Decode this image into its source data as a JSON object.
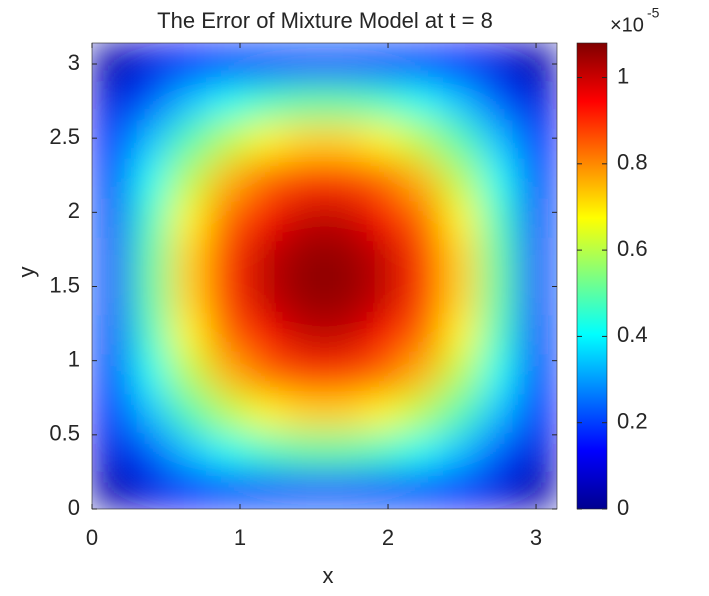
{
  "chart_data": {
    "type": "heatmap",
    "title": "The Error of Mixture Model at t = 8",
    "xlabel": "x",
    "ylabel": "y",
    "xlim": [
      0,
      3.1416
    ],
    "xticks": [
      0,
      1,
      2,
      3
    ],
    "ylim": [
      0,
      3.1416
    ],
    "yticks": [
      0,
      0.5,
      1,
      1.5,
      2,
      2.5,
      3
    ],
    "colormap": "jet",
    "colorbar": {
      "clim": [
        0,
        1.08
      ],
      "ticks": [
        0,
        0.2,
        0.4,
        0.6,
        0.8,
        1
      ],
      "multiplier_base": "×10",
      "multiplier_exponent": "-5"
    },
    "z": [
      [
        0.04,
        0.1,
        0.14,
        0.18,
        0.2,
        0.21,
        0.21,
        0.2,
        0.18,
        0.14,
        0.1,
        0.04
      ],
      [
        0.1,
        0.23,
        0.34,
        0.42,
        0.47,
        0.5,
        0.5,
        0.47,
        0.42,
        0.34,
        0.23,
        0.1
      ],
      [
        0.14,
        0.34,
        0.49,
        0.6,
        0.68,
        0.72,
        0.72,
        0.68,
        0.6,
        0.49,
        0.34,
        0.14
      ],
      [
        0.18,
        0.42,
        0.6,
        0.75,
        0.84,
        0.89,
        0.89,
        0.84,
        0.75,
        0.6,
        0.42,
        0.18
      ],
      [
        0.2,
        0.47,
        0.68,
        0.84,
        0.95,
        1.01,
        1.01,
        0.95,
        0.84,
        0.68,
        0.47,
        0.2
      ],
      [
        0.21,
        0.5,
        0.72,
        0.89,
        1.01,
        1.06,
        1.06,
        1.01,
        0.89,
        0.72,
        0.5,
        0.21
      ],
      [
        0.21,
        0.5,
        0.72,
        0.89,
        1.01,
        1.06,
        1.06,
        1.01,
        0.89,
        0.72,
        0.5,
        0.21
      ],
      [
        0.2,
        0.47,
        0.68,
        0.84,
        0.95,
        1.01,
        1.01,
        0.95,
        0.84,
        0.68,
        0.47,
        0.2
      ],
      [
        0.18,
        0.42,
        0.6,
        0.75,
        0.84,
        0.89,
        0.89,
        0.84,
        0.75,
        0.6,
        0.42,
        0.18
      ],
      [
        0.14,
        0.34,
        0.49,
        0.6,
        0.68,
        0.72,
        0.72,
        0.68,
        0.6,
        0.49,
        0.34,
        0.14
      ],
      [
        0.1,
        0.23,
        0.34,
        0.42,
        0.47,
        0.5,
        0.5,
        0.47,
        0.42,
        0.34,
        0.23,
        0.1
      ],
      [
        0.04,
        0.1,
        0.14,
        0.18,
        0.2,
        0.21,
        0.21,
        0.2,
        0.18,
        0.14,
        0.1,
        0.04
      ]
    ]
  }
}
